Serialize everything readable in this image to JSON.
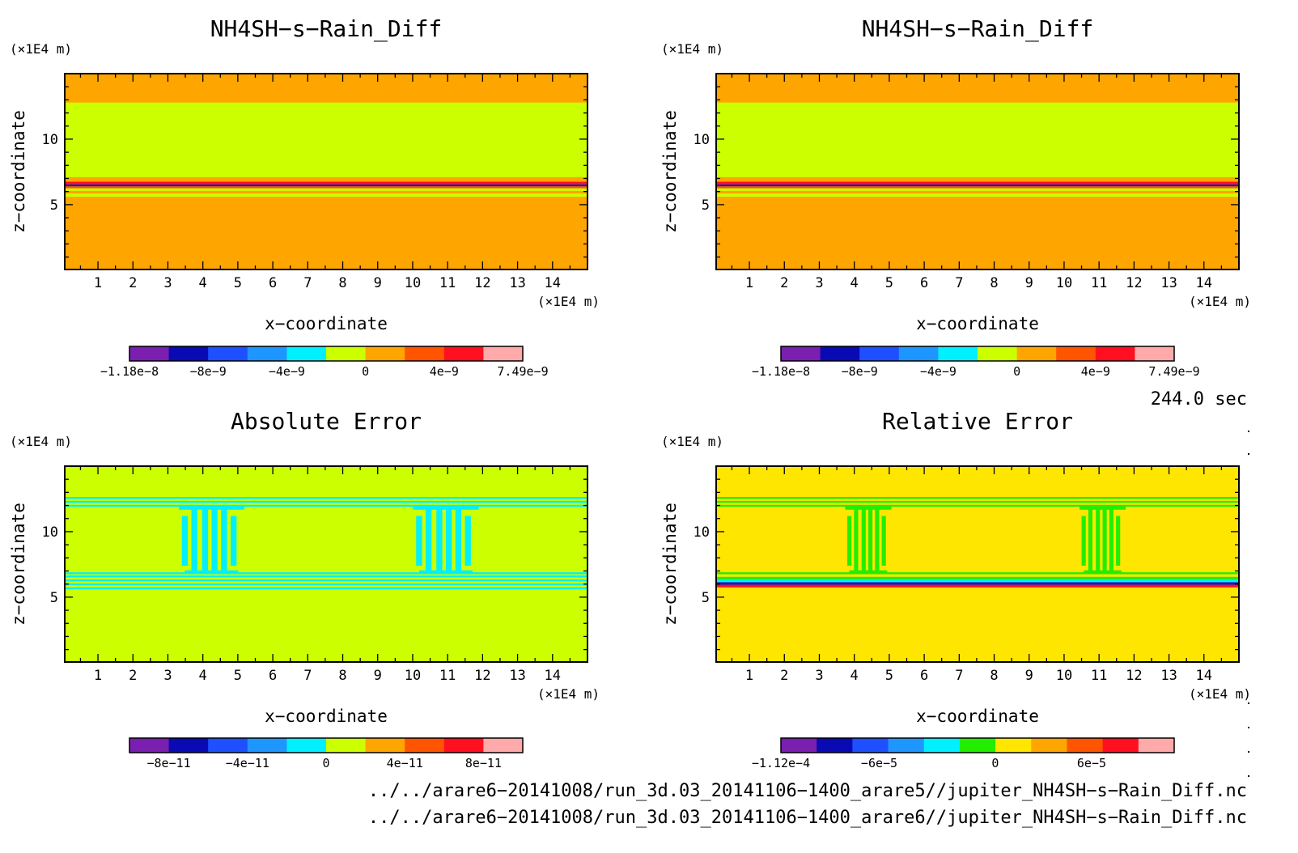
{
  "chart_data": [
    {
      "type": "heatmap",
      "id": "p1",
      "title": "NH4SH−s−Rain_Diff",
      "xlabel": "x−coordinate",
      "ylabel": "z−coordinate",
      "x_unit": "(×1E4 m)",
      "y_unit": "(×1E4 m)",
      "xlim": [
        0.05,
        15.0
      ],
      "ylim": [
        0.05,
        15.0
      ],
      "x_ticks": [
        "1",
        "2",
        "3",
        "4",
        "5",
        "6",
        "7",
        "8",
        "9",
        "10",
        "11",
        "12",
        "13",
        "14"
      ],
      "y_ticks": [
        "5",
        "10"
      ],
      "background_color": "#ffa500",
      "bands": [
        {
          "z0": 0.05,
          "z1": 5.6,
          "color": "#ffa500"
        },
        {
          "z0": 5.6,
          "z1": 5.85,
          "color": "#ccff00"
        },
        {
          "z0": 5.85,
          "z1": 6.05,
          "color": "#ffa500"
        },
        {
          "z0": 6.05,
          "z1": 6.25,
          "color": "#ccff00"
        },
        {
          "z0": 6.25,
          "z1": 6.4,
          "color": "#ff5500"
        },
        {
          "z0": 6.4,
          "z1": 6.55,
          "color": "#0a1ecc"
        },
        {
          "z0": 6.55,
          "z1": 6.75,
          "color": "#ff0f20"
        },
        {
          "z0": 6.75,
          "z1": 7.1,
          "color": "#ffa500"
        },
        {
          "z0": 7.1,
          "z1": 12.8,
          "color": "#ccff00"
        },
        {
          "z0": 12.8,
          "z1": 15.0,
          "color": "#ffa500"
        }
      ],
      "colorbar": {
        "colors": [
          "#7a1fb0",
          "#0a0ab4",
          "#1e50ff",
          "#1e96ff",
          "#00f0ff",
          "#ccff00",
          "#ffa500",
          "#ff5500",
          "#ff0f20",
          "#ffaaaa"
        ],
        "labels": [
          {
            "text": "−1.18e−8",
            "pos": 0.0
          },
          {
            "text": "−8e−9",
            "pos": 0.2
          },
          {
            "text": "−4e−9",
            "pos": 0.4
          },
          {
            "text": "0",
            "pos": 0.6
          },
          {
            "text": "4e−9",
            "pos": 0.8
          },
          {
            "text": "7.49e−9",
            "pos": 1.0
          }
        ]
      }
    },
    {
      "type": "heatmap",
      "id": "p2",
      "title": "NH4SH−s−Rain_Diff",
      "xlabel": "x−coordinate",
      "ylabel": "z−coordinate",
      "x_unit": "(×1E4 m)",
      "y_unit": "(×1E4 m)",
      "xlim": [
        0.05,
        15.0
      ],
      "ylim": [
        0.05,
        15.0
      ],
      "x_ticks": [
        "1",
        "2",
        "3",
        "4",
        "5",
        "6",
        "7",
        "8",
        "9",
        "10",
        "11",
        "12",
        "13",
        "14"
      ],
      "y_ticks": [
        "5",
        "10"
      ],
      "background_color": "#ffa500",
      "bands": [
        {
          "z0": 0.05,
          "z1": 5.6,
          "color": "#ffa500"
        },
        {
          "z0": 5.6,
          "z1": 5.85,
          "color": "#ccff00"
        },
        {
          "z0": 5.85,
          "z1": 6.05,
          "color": "#ffa500"
        },
        {
          "z0": 6.05,
          "z1": 6.25,
          "color": "#ccff00"
        },
        {
          "z0": 6.25,
          "z1": 6.4,
          "color": "#ff5500"
        },
        {
          "z0": 6.4,
          "z1": 6.55,
          "color": "#0a1ecc"
        },
        {
          "z0": 6.55,
          "z1": 6.75,
          "color": "#ff0f20"
        },
        {
          "z0": 6.75,
          "z1": 7.1,
          "color": "#ffa500"
        },
        {
          "z0": 7.1,
          "z1": 12.8,
          "color": "#ccff00"
        },
        {
          "z0": 12.8,
          "z1": 15.0,
          "color": "#ffa500"
        }
      ],
      "colorbar": {
        "colors": [
          "#7a1fb0",
          "#0a0ab4",
          "#1e50ff",
          "#1e96ff",
          "#00f0ff",
          "#ccff00",
          "#ffa500",
          "#ff5500",
          "#ff0f20",
          "#ffaaaa"
        ],
        "labels": [
          {
            "text": "−1.18e−8",
            "pos": 0.0
          },
          {
            "text": "−8e−9",
            "pos": 0.2
          },
          {
            "text": "−4e−9",
            "pos": 0.4
          },
          {
            "text": "0",
            "pos": 0.6
          },
          {
            "text": "4e−9",
            "pos": 0.8
          },
          {
            "text": "7.49e−9",
            "pos": 1.0
          }
        ]
      }
    },
    {
      "type": "heatmap",
      "id": "p3",
      "title": "Absolute Error",
      "xlabel": "x−coordinate",
      "ylabel": "z−coordinate",
      "x_unit": "(×1E4 m)",
      "y_unit": "(×1E4 m)",
      "xlim": [
        0.05,
        15.0
      ],
      "ylim": [
        0.05,
        15.0
      ],
      "x_ticks": [
        "1",
        "2",
        "3",
        "4",
        "5",
        "6",
        "7",
        "8",
        "9",
        "10",
        "11",
        "12",
        "13",
        "14"
      ],
      "y_ticks": [
        "5",
        "10"
      ],
      "background_color": "#ccff00",
      "bands": [
        {
          "z0": 5.6,
          "z1": 5.75,
          "color": "#00f0ff"
        },
        {
          "z0": 5.9,
          "z1": 6.05,
          "color": "#00f0ff"
        },
        {
          "z0": 6.2,
          "z1": 6.35,
          "color": "#00f0ff"
        },
        {
          "z0": 6.5,
          "z1": 6.65,
          "color": "#00f0ff"
        },
        {
          "z0": 6.75,
          "z1": 6.9,
          "color": "#00f0ff"
        },
        {
          "z0": 11.9,
          "z1": 12.05,
          "color": "#00f0ff"
        },
        {
          "z0": 12.2,
          "z1": 12.35,
          "color": "#00f0ff"
        },
        {
          "z0": 12.5,
          "z1": 12.65,
          "color": "#00f0ff"
        }
      ],
      "features": [
        {
          "x0": 3.4,
          "x1": 5.1,
          "z0": 6.8,
          "z1": 11.8,
          "color": "#00f0ff"
        },
        {
          "x0": 10.1,
          "x1": 11.8,
          "z0": 6.8,
          "z1": 11.8,
          "color": "#00f0ff"
        }
      ],
      "colorbar": {
        "colors": [
          "#7a1fb0",
          "#0a0ab4",
          "#1e50ff",
          "#1e96ff",
          "#00f0ff",
          "#ccff00",
          "#ffa500",
          "#ff5500",
          "#ff0f20",
          "#ffaaaa"
        ],
        "labels": [
          {
            "text": "−8e−11",
            "pos": 0.1
          },
          {
            "text": "−4e−11",
            "pos": 0.3
          },
          {
            "text": "0",
            "pos": 0.5
          },
          {
            "text": "4e−11",
            "pos": 0.7
          },
          {
            "text": "8e−11",
            "pos": 0.9
          }
        ]
      }
    },
    {
      "type": "heatmap",
      "id": "p4",
      "title": "Relative Error",
      "xlabel": "x−coordinate",
      "ylabel": "z−coordinate",
      "x_unit": "(×1E4 m)",
      "y_unit": "(×1E4 m)",
      "xlim": [
        0.05,
        15.0
      ],
      "ylim": [
        0.05,
        15.0
      ],
      "x_ticks": [
        "1",
        "2",
        "3",
        "4",
        "5",
        "6",
        "7",
        "8",
        "9",
        "10",
        "11",
        "12",
        "13",
        "14"
      ],
      "y_ticks": [
        "5",
        "10"
      ],
      "background_color": "#ffe600",
      "bands": [
        {
          "z0": 5.75,
          "z1": 5.95,
          "color": "#ff0f20"
        },
        {
          "z0": 5.95,
          "z1": 6.15,
          "color": "#0a1ecc"
        },
        {
          "z0": 6.15,
          "z1": 6.35,
          "color": "#00f0ff"
        },
        {
          "z0": 6.35,
          "z1": 6.55,
          "color": "#22ee00"
        },
        {
          "z0": 6.75,
          "z1": 6.9,
          "color": "#22ee00"
        },
        {
          "z0": 11.9,
          "z1": 12.05,
          "color": "#22ee00"
        },
        {
          "z0": 12.2,
          "z1": 12.35,
          "color": "#22ee00"
        },
        {
          "z0": 12.5,
          "z1": 12.65,
          "color": "#22ee00"
        }
      ],
      "features": [
        {
          "x0": 3.8,
          "x1": 5.0,
          "z0": 6.8,
          "z1": 11.8,
          "color": "#22ee00"
        },
        {
          "x0": 10.5,
          "x1": 11.7,
          "z0": 6.8,
          "z1": 11.8,
          "color": "#22ee00"
        }
      ],
      "colorbar": {
        "colors": [
          "#7a1fb0",
          "#0a0ab4",
          "#1e50ff",
          "#1e96ff",
          "#00f0ff",
          "#22ee00",
          "#ffe600",
          "#ffa500",
          "#ff5500",
          "#ff0f20",
          "#ffaaaa"
        ],
        "labels": [
          {
            "text": "−1.12e−4",
            "pos": 0.0
          },
          {
            "text": "−6e−5",
            "pos": 0.25
          },
          {
            "text": "0",
            "pos": 0.545
          },
          {
            "text": "6e−5",
            "pos": 0.79
          }
        ]
      }
    }
  ],
  "time_label": "244.0 sec",
  "file_paths": [
    "../../arare6−20141008/run_3d.03_20141106−1400_arare5//jupiter_NH4SH−s−Rain_Diff.nc",
    "../../arare6−20141008/run_3d.03_20141106−1400_arare6//jupiter_NH4SH−s−Rain_Diff.nc"
  ]
}
